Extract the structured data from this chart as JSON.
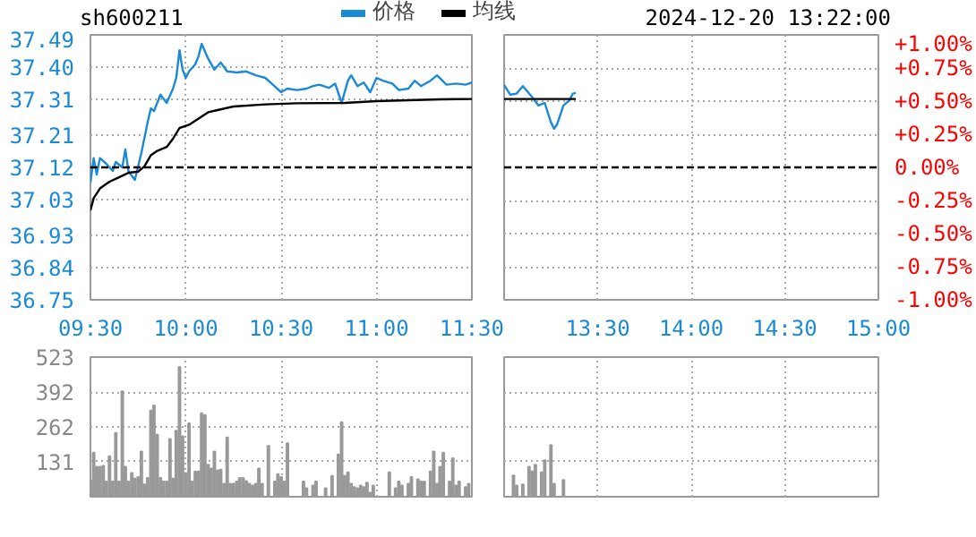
{
  "chart_data": [
    {
      "type": "line",
      "title": "sh600211",
      "legend": "top",
      "grid": true,
      "xlim": [
        9.5,
        11.5
      ],
      "xticks": [
        {
          "value": 9.5,
          "label": "09:30"
        },
        {
          "value": 10,
          "label": "10:00"
        },
        {
          "value": 10.5,
          "label": "10:30"
        },
        {
          "value": 11,
          "label": "11:00"
        },
        {
          "value": 11.5,
          "label": "11:30"
        }
      ],
      "ylim": [
        36.75,
        37.49
      ],
      "yticks": [
        36.75,
        36.84,
        36.93,
        37.03,
        37.12,
        37.21,
        37.31,
        {
          "value": 37.4,
          "label": "37.40"
        },
        37.49
      ],
      "ref_lines": [
        {
          "axis": "y",
          "value": 37.12,
          "color": "#000000",
          "line_style": "dashed"
        }
      ],
      "series": [
        {
          "name": "价格",
          "color": "#1a8ad6",
          "x": [
            9.5,
            9.517,
            9.533,
            9.55,
            9.583,
            9.617,
            9.633,
            9.667,
            9.683,
            9.7,
            9.733,
            9.767,
            9.8,
            9.817,
            9.833,
            9.867,
            9.9,
            9.933,
            9.95,
            9.967,
            9.983,
            10,
            10.017,
            10.05,
            10.067,
            10.083,
            10.117,
            10.15,
            10.183,
            10.217,
            10.267,
            10.317,
            10.367,
            10.417,
            10.45,
            10.5,
            10.533,
            10.583,
            10.633,
            10.667,
            10.7,
            10.75,
            10.783,
            10.817,
            10.85,
            10.867,
            10.9,
            10.933,
            10.967,
            11,
            11.033,
            11.083,
            11.117,
            11.167,
            11.2,
            11.233,
            11.283,
            11.317,
            11.367,
            11.417,
            11.467,
            11.5
          ],
          "values": [
            37.077,
            37.146,
            37.1,
            37.146,
            37.13,
            37.11,
            37.135,
            37.12,
            37.17,
            37.108,
            37.085,
            37.16,
            37.246,
            37.285,
            37.277,
            37.323,
            37.3,
            37.34,
            37.37,
            37.447,
            37.393,
            37.37,
            37.388,
            37.408,
            37.431,
            37.465,
            37.424,
            37.393,
            37.413,
            37.388,
            37.385,
            37.388,
            37.377,
            37.37,
            37.354,
            37.33,
            37.34,
            37.336,
            37.34,
            37.347,
            37.351,
            37.342,
            37.354,
            37.3,
            37.362,
            37.377,
            37.347,
            37.357,
            37.33,
            37.37,
            37.362,
            37.354,
            37.336,
            37.34,
            37.362,
            37.347,
            37.362,
            37.377,
            37.351,
            37.354,
            37.351,
            37.357
          ]
        },
        {
          "name": "均线",
          "color": "#000000",
          "x": [
            9.5,
            9.517,
            9.55,
            9.6,
            9.65,
            9.7,
            9.75,
            9.783,
            9.817,
            9.85,
            9.9,
            9.933,
            9.967,
            10.017,
            10.083,
            10.117,
            10.167,
            10.25,
            10.417,
            10.583,
            10.833,
            11,
            11.333,
            11.5
          ],
          "values": [
            37.0,
            37.034,
            37.061,
            37.08,
            37.092,
            37.105,
            37.108,
            37.123,
            37.154,
            37.166,
            37.177,
            37.2,
            37.23,
            37.239,
            37.262,
            37.274,
            37.28,
            37.29,
            37.296,
            37.299,
            37.3,
            37.305,
            37.31,
            37.311
          ]
        }
      ]
    },
    {
      "type": "line",
      "subtitle": "2024-12-20 13:22:00",
      "grid": true,
      "xlim": [
        13,
        15
      ],
      "xticks": [
        {
          "value": 13.5,
          "label": "13:30"
        },
        {
          "value": 14,
          "label": "14:00"
        },
        {
          "value": 14.5,
          "label": "14:30"
        },
        {
          "value": 15,
          "label": "15:00"
        }
      ],
      "ylim": [
        36.75,
        37.49
      ],
      "y2lim": [
        -1,
        1
      ],
      "y2ticks": [
        {
          "value": -1,
          "label": "-1.00%"
        },
        {
          "value": -0.75,
          "label": "-0.75%"
        },
        {
          "value": -0.5,
          "label": "-0.50%"
        },
        {
          "value": -0.25,
          "label": "-0.25%"
        },
        {
          "value": 0,
          "label": "0.00%"
        },
        {
          "value": 0.25,
          "label": "+0.25%"
        },
        {
          "value": 0.5,
          "label": "+0.50%"
        },
        {
          "value": 0.75,
          "label": "+0.75%"
        },
        {
          "value": 1,
          "label": "+1.00%"
        }
      ],
      "ref_lines": [
        {
          "axis": "y",
          "value": 37.12,
          "color": "#000000",
          "line_style": "dashed"
        }
      ],
      "series": [
        {
          "color": "#1a8ad6",
          "x": [
            13,
            13.033,
            13.067,
            13.1,
            13.15,
            13.183,
            13.217,
            13.25,
            13.267,
            13.283,
            13.317,
            13.35,
            13.367,
            13.383
          ],
          "values": [
            37.35,
            37.323,
            37.326,
            37.347,
            37.316,
            37.293,
            37.3,
            37.246,
            37.228,
            37.24,
            37.293,
            37.308,
            37.326,
            37.328
          ]
        },
        {
          "color": "#000000",
          "x": [
            13,
            13.167,
            13.383
          ],
          "values": [
            37.311,
            37.311,
            37.311
          ]
        }
      ]
    },
    {
      "type": "bar",
      "color": "#999999",
      "grid": true,
      "tick_labels": "y",
      "xlim": [
        9.5,
        11.5
      ],
      "xticks": [
        9.5,
        10,
        10.5,
        11,
        11.5
      ],
      "ylim": [
        0,
        523
      ],
      "yticks": [
        131,
        262,
        392,
        523
      ],
      "x": [
        9.5,
        9.517,
        9.533,
        9.55,
        9.567,
        9.583,
        9.6,
        9.617,
        9.633,
        9.65,
        9.667,
        9.683,
        9.7,
        9.717,
        9.733,
        9.75,
        9.767,
        9.783,
        9.8,
        9.817,
        9.833,
        9.85,
        9.867,
        9.883,
        9.9,
        9.917,
        9.933,
        9.95,
        9.967,
        9.983,
        10,
        10.017,
        10.033,
        10.05,
        10.067,
        10.083,
        10.1,
        10.117,
        10.133,
        10.15,
        10.167,
        10.183,
        10.2,
        10.217,
        10.233,
        10.25,
        10.267,
        10.283,
        10.3,
        10.317,
        10.333,
        10.35,
        10.367,
        10.383,
        10.4,
        10.433,
        10.467,
        10.483,
        10.5,
        10.517,
        10.533,
        10.617,
        10.633,
        10.667,
        10.683,
        10.733,
        10.767,
        10.8,
        10.817,
        10.833,
        10.85,
        10.867,
        10.883,
        10.9,
        10.917,
        10.933,
        10.95,
        10.967,
        10.983,
        11.067,
        11.1,
        11.117,
        11.133,
        11.167,
        11.183,
        11.217,
        11.233,
        11.25,
        11.283,
        11.3,
        11.317,
        11.333,
        11.35,
        11.383,
        11.4,
        11.417,
        11.433,
        11.467,
        11.483
      ],
      "values": [
        63,
        165,
        112,
        112,
        116,
        57,
        152,
        57,
        239,
        57,
        395,
        112,
        57,
        89,
        68,
        74,
        169,
        46,
        70,
        323,
        342,
        232,
        70,
        57,
        57,
        216,
        68,
        247,
        486,
        226,
        89,
        275,
        57,
        95,
        95,
        313,
        306,
        120,
        106,
        169,
        99,
        101,
        49,
        222,
        49,
        49,
        57,
        70,
        70,
        59,
        49,
        42,
        49,
        106,
        49,
        190,
        57,
        85,
        74,
        57,
        200,
        57,
        32,
        42,
        57,
        32,
        78,
        158,
        279,
        78,
        91,
        49,
        36,
        32,
        42,
        36,
        53,
        15,
        42,
        91,
        32,
        57,
        42,
        49,
        74,
        65,
        57,
        57,
        95,
        169,
        49,
        112,
        165,
        57,
        144,
        42,
        57,
        36,
        49
      ]
    },
    {
      "type": "bar",
      "color": "#999999",
      "grid": true,
      "tick_labels": false,
      "xlim": [
        13,
        15
      ],
      "xticks": [
        13.5,
        14,
        14.5,
        15
      ],
      "ylim": [
        0,
        523
      ],
      "yticks": [
        131,
        262,
        392,
        523
      ],
      "x": [
        13.05,
        13.067,
        13.1,
        13.133,
        13.15,
        13.167,
        13.2,
        13.217,
        13.25,
        13.267,
        13.317
      ],
      "values": [
        80,
        42,
        46,
        112,
        95,
        120,
        91,
        137,
        194,
        49,
        63
      ]
    }
  ]
}
